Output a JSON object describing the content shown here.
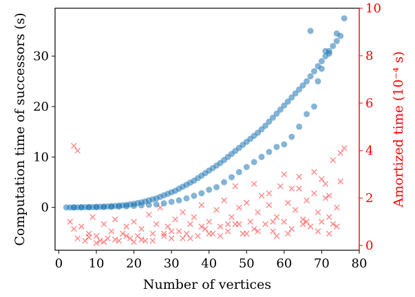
{
  "chart_data": {
    "type": "scatter",
    "xlabel": "Number of vertices",
    "ylabel_left": "Computation time of successors (s)",
    "ylabel_right": "Amortized time (10⁻⁴ s)",
    "xlim": [
      -1,
      80
    ],
    "ylim_left": [
      -8.5,
      39.5
    ],
    "ylim_right": [
      -0.2,
      10
    ],
    "x_ticks": [
      0,
      10,
      20,
      30,
      40,
      50,
      60,
      70,
      80
    ],
    "y_left_ticks": [
      0,
      10,
      20,
      30
    ],
    "y_right_ticks": [
      0,
      2,
      4,
      6,
      8,
      10
    ],
    "grid": false,
    "colors": {
      "computation": "#1f77b4",
      "amortized": "#ff0000",
      "right_axis": "#ff0000",
      "axes": "#000000"
    },
    "series": [
      {
        "axis": "left",
        "marker": "circle",
        "points": [
          [
            2,
            0.0
          ],
          [
            3,
            0.0
          ],
          [
            4,
            0.0
          ],
          [
            5,
            0.01
          ],
          [
            6,
            0.02
          ],
          [
            7,
            0.03
          ],
          [
            8,
            0.05
          ],
          [
            9,
            0.07
          ],
          [
            10,
            0.1
          ],
          [
            11,
            0.13
          ],
          [
            12,
            0.16
          ],
          [
            13,
            0.2
          ],
          [
            14,
            0.25
          ],
          [
            15,
            0.3
          ],
          [
            16,
            0.36
          ],
          [
            17,
            0.42
          ],
          [
            18,
            0.5
          ],
          [
            19,
            0.6
          ],
          [
            20,
            0.7
          ],
          [
            21,
            0.85
          ],
          [
            22,
            1.0
          ],
          [
            23,
            1.2
          ],
          [
            24,
            1.4
          ],
          [
            25,
            1.6
          ],
          [
            26,
            1.8
          ],
          [
            27,
            2.1
          ],
          [
            28,
            2.4
          ],
          [
            29,
            2.7
          ],
          [
            30,
            3.0
          ],
          [
            31,
            3.3
          ],
          [
            32,
            3.7
          ],
          [
            33,
            4.1
          ],
          [
            34,
            4.5
          ],
          [
            35,
            4.9
          ],
          [
            36,
            5.3
          ],
          [
            37,
            5.8
          ],
          [
            38,
            6.3
          ],
          [
            39,
            6.8
          ],
          [
            40,
            7.3
          ],
          [
            41,
            7.8
          ],
          [
            42,
            8.3
          ],
          [
            43,
            8.8
          ],
          [
            44,
            9.4
          ],
          [
            45,
            10.0
          ],
          [
            46,
            10.6
          ],
          [
            47,
            11.2
          ],
          [
            48,
            11.8
          ],
          [
            49,
            12.4
          ],
          [
            50,
            13.0
          ],
          [
            51,
            13.6
          ],
          [
            52,
            14.2
          ],
          [
            53,
            14.8
          ],
          [
            54,
            15.5
          ],
          [
            55,
            16.2
          ],
          [
            56,
            17.0
          ],
          [
            57,
            17.8
          ],
          [
            58,
            18.6
          ],
          [
            59,
            19.4
          ],
          [
            60,
            20.2
          ],
          [
            61,
            21.0
          ],
          [
            62,
            21.8
          ],
          [
            63,
            22.6
          ],
          [
            64,
            23.4
          ],
          [
            65,
            24.2
          ],
          [
            66,
            25.0
          ],
          [
            67,
            26.0
          ],
          [
            68,
            27.0
          ],
          [
            69,
            28.0
          ],
          [
            70,
            29.0
          ],
          [
            71,
            30.0
          ],
          [
            72,
            31.0
          ],
          [
            73,
            32.0
          ],
          [
            74,
            33.0
          ],
          [
            75,
            34.0
          ],
          [
            76,
            37.5
          ],
          [
            67,
            35.0
          ],
          [
            74,
            34.5
          ],
          [
            71,
            31.0
          ],
          [
            72,
            30.5
          ],
          [
            70,
            27.5
          ],
          [
            69,
            25.0
          ],
          [
            68,
            20.0
          ],
          [
            66,
            18.5
          ],
          [
            64,
            16.0
          ],
          [
            62,
            14.0
          ],
          [
            60,
            12.5
          ],
          [
            58,
            12.0
          ],
          [
            56,
            11.0
          ],
          [
            54,
            10.0
          ],
          [
            52,
            9.0
          ],
          [
            50,
            8.0
          ],
          [
            48,
            7.0
          ],
          [
            46,
            6.0
          ],
          [
            44,
            5.0
          ],
          [
            42,
            4.0
          ],
          [
            40,
            3.5
          ],
          [
            38,
            2.8
          ],
          [
            36,
            2.3
          ],
          [
            34,
            1.8
          ],
          [
            32,
            1.4
          ],
          [
            30,
            1.1
          ],
          [
            28,
            0.8
          ],
          [
            26,
            0.6
          ],
          [
            24,
            0.5
          ],
          [
            22,
            0.4
          ],
          [
            20,
            0.3
          ],
          [
            18,
            0.2
          ],
          [
            16,
            0.15
          ],
          [
            14,
            0.1
          ],
          [
            12,
            0.08
          ],
          [
            10,
            0.05
          ],
          [
            8,
            0.03
          ],
          [
            6,
            0.02
          ],
          [
            4,
            0.01
          ]
        ]
      },
      {
        "axis": "right",
        "marker": "x",
        "points": [
          [
            3,
            1.0
          ],
          [
            4,
            0.7
          ],
          [
            5,
            0.3
          ],
          [
            6,
            0.8
          ],
          [
            7,
            0.2
          ],
          [
            8,
            0.5
          ],
          [
            9,
            1.2
          ],
          [
            10,
            0.4
          ],
          [
            11,
            0.2
          ],
          [
            12,
            0.9
          ],
          [
            13,
            0.3
          ],
          [
            14,
            0.6
          ],
          [
            15,
            1.1
          ],
          [
            16,
            0.2
          ],
          [
            17,
            0.5
          ],
          [
            18,
            0.8
          ],
          [
            19,
            0.3
          ],
          [
            20,
            1.0
          ],
          [
            21,
            0.4
          ],
          [
            22,
            0.7
          ],
          [
            23,
            0.2
          ],
          [
            24,
            1.3
          ],
          [
            25,
            0.5
          ],
          [
            26,
            0.9
          ],
          [
            27,
            1.6
          ],
          [
            28,
            0.4
          ],
          [
            29,
            0.8
          ],
          [
            30,
            0.3
          ],
          [
            31,
            1.1
          ],
          [
            32,
            0.6
          ],
          [
            33,
            1.4
          ],
          [
            34,
            0.5
          ],
          [
            35,
            0.9
          ],
          [
            36,
            1.2
          ],
          [
            37,
            0.4
          ],
          [
            38,
            1.7
          ],
          [
            39,
            0.7
          ],
          [
            40,
            1.0
          ],
          [
            41,
            0.5
          ],
          [
            42,
            1.5
          ],
          [
            43,
            0.8
          ],
          [
            44,
            1.9
          ],
          [
            45,
            0.6
          ],
          [
            46,
            1.2
          ],
          [
            47,
            0.9
          ],
          [
            48,
            1.6
          ],
          [
            49,
            0.5
          ],
          [
            50,
            1.8
          ],
          [
            51,
            1.0
          ],
          [
            52,
            0.7
          ],
          [
            53,
            1.4
          ],
          [
            54,
            2.1
          ],
          [
            55,
            0.9
          ],
          [
            56,
            1.7
          ],
          [
            57,
            0.6
          ],
          [
            58,
            1.2
          ],
          [
            59,
            2.5
          ],
          [
            60,
            1.0
          ],
          [
            61,
            1.8
          ],
          [
            62,
            0.7
          ],
          [
            63,
            1.5
          ],
          [
            64,
            2.4
          ],
          [
            65,
            1.1
          ],
          [
            66,
            1.9
          ],
          [
            67,
            0.8
          ],
          [
            68,
            2.2
          ],
          [
            69,
            1.4
          ],
          [
            70,
            1.0
          ],
          [
            71,
            2.0
          ],
          [
            72,
            1.2
          ],
          [
            73,
            0.9
          ],
          [
            74,
            1.6
          ],
          [
            75,
            3.9
          ],
          [
            76,
            4.1
          ],
          [
            4,
            4.2
          ],
          [
            5,
            4.0
          ],
          [
            62,
            2.4
          ],
          [
            66,
            1.0
          ],
          [
            58,
            0.4
          ],
          [
            50,
            0.5
          ],
          [
            45,
            0.9
          ],
          [
            40,
            0.5
          ],
          [
            35,
            0.3
          ],
          [
            30,
            0.6
          ],
          [
            25,
            0.2
          ],
          [
            20,
            0.15
          ],
          [
            15,
            0.25
          ],
          [
            10,
            0.1
          ],
          [
            8,
            0.35
          ],
          [
            12,
            0.15
          ],
          [
            18,
            0.4
          ],
          [
            22,
            0.25
          ],
          [
            28,
            0.5
          ],
          [
            33,
            0.3
          ],
          [
            38,
            0.8
          ],
          [
            43,
            0.4
          ],
          [
            48,
            0.9
          ],
          [
            53,
            0.6
          ],
          [
            57,
            1.0
          ],
          [
            61,
            0.5
          ],
          [
            65,
            0.9
          ],
          [
            69,
            0.6
          ],
          [
            72,
            0.5
          ],
          [
            74,
            0.8
          ],
          [
            70,
            2.8
          ],
          [
            72,
            2.1
          ],
          [
            47,
            2.5
          ],
          [
            52,
            2.6
          ],
          [
            56,
            2.2
          ],
          [
            60,
            3.0
          ],
          [
            64,
            2.9
          ],
          [
            68,
            3.1
          ],
          [
            71,
            2.6
          ],
          [
            73,
            3.6
          ],
          [
            75,
            2.7
          ]
        ]
      }
    ]
  }
}
